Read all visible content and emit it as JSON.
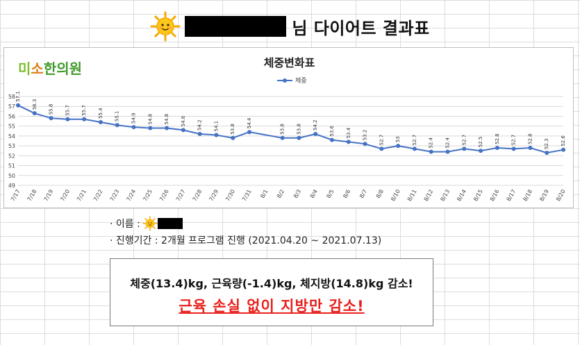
{
  "header": {
    "title": "님 다이어트 결과표",
    "sun_icon": "sun-emoji-icon"
  },
  "chart": {
    "logo": {
      "part1": "미",
      "part2": "소",
      "part3": "한의원"
    }
  },
  "chart_data": {
    "type": "line",
    "title": "체중변화표",
    "legend_position": "top-center",
    "grid": true,
    "ylim": [
      49,
      58
    ],
    "y_ticks": [
      49,
      50,
      51,
      52,
      53,
      54,
      55,
      56,
      57,
      58
    ],
    "categories": [
      "7/17",
      "7/18",
      "7/19",
      "7/20",
      "7/21",
      "7/22",
      "7/23",
      "7/24",
      "7/25",
      "7/26",
      "7/27",
      "7/28",
      "7/29",
      "7/30",
      "7/31",
      "8/1",
      "8/2",
      "8/3",
      "8/4",
      "8/5",
      "8/6",
      "8/7",
      "8/8",
      "8/10",
      "8/11",
      "8/12",
      "8/13",
      "8/14",
      "8/15",
      "8/16",
      "8/17",
      "8/18",
      "8/19",
      "8/20"
    ],
    "series": [
      {
        "name": "체중",
        "color": "#4472c4",
        "values": [
          57.1,
          56.3,
          55.8,
          55.7,
          55.7,
          55.4,
          55.1,
          54.9,
          54.8,
          54.8,
          54.6,
          54.2,
          54.1,
          53.8,
          54.4,
          null,
          53.8,
          53.8,
          54.2,
          53.6,
          53.4,
          53.2,
          52.7,
          53,
          52.7,
          52.4,
          52.4,
          52.7,
          52.5,
          52.8,
          52.7,
          52.8,
          52.3,
          52.6
        ],
        "labels": [
          "57.1",
          "56.3",
          "55.8",
          "55.7",
          "55.7",
          "55.4",
          "55.1",
          "54.9",
          "54.8",
          "54.8",
          "54.6",
          "54.2",
          "54.1",
          "53.8",
          "54.4",
          "",
          "53.8",
          "53.8",
          "54.2",
          "53.6",
          "53.4",
          "53.2",
          "52.7",
          "53",
          "52.7",
          "52.4",
          "52.4",
          "52.7",
          "52.5",
          "52.8",
          "52.7",
          "52.8",
          "52.3",
          "52.6"
        ]
      }
    ]
  },
  "info": {
    "name_label": "· 이름 :",
    "period_text": "· 진행기간 : 2개월 프로그램 진행 (2021.04.20 ~ 2021.07.13)"
  },
  "result": {
    "line1": "체중(13.4)kg, 근육량(-1.4)kg, 체지방(14.8)kg 감소!",
    "line2": "근육 손실 없이 지방만 감소!"
  }
}
